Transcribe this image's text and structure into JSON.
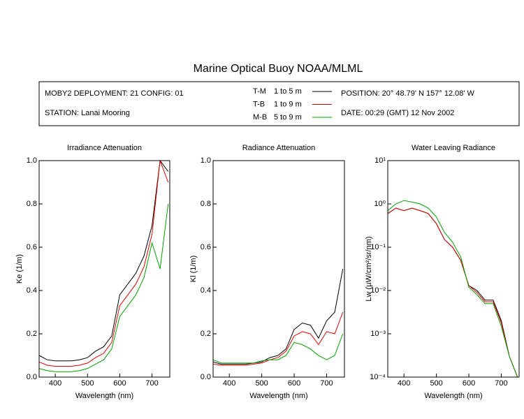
{
  "header": {
    "title": "Marine Optical Buoy NOAA/MLML",
    "deployment": "MOBY2 DEPLOYMENT: 21 CONFIG: 01",
    "station": "STATION: Lanai Mooring",
    "position": "POSITION: 20° 48.79' N   157° 12.08' W",
    "date": "DATE: 00:29 (GMT) 12 Nov 2002",
    "legend": [
      {
        "name": "T-M",
        "range": "1 to 5  m",
        "color": "#000000"
      },
      {
        "name": "T-B",
        "range": "1 to 9  m",
        "color": "#e00000"
      },
      {
        "name": "M-B",
        "range": "5 to 9  m",
        "color": "#00a000"
      }
    ]
  },
  "chart_data": [
    {
      "type": "line",
      "title": "Irradiance Attenuation",
      "x_label": "Wavelength (nm)",
      "y_label": "Ke  (1/m)",
      "x": [
        350,
        375,
        400,
        425,
        450,
        475,
        500,
        525,
        550,
        575,
        600,
        625,
        650,
        675,
        700,
        725,
        750
      ],
      "xlim": [
        350,
        755
      ],
      "xticks": [
        400,
        500,
        600,
        700
      ],
      "ylim": [
        0,
        1
      ],
      "yticks": [
        {
          "value": 0,
          "label": "0.0"
        },
        0.2,
        0.4,
        0.6,
        0.8,
        {
          "value": 1,
          "label": "1.0"
        }
      ],
      "series": [
        {
          "name": "T-M",
          "color": "#000000",
          "values": [
            0.1,
            0.08,
            0.075,
            0.075,
            0.075,
            0.08,
            0.09,
            0.12,
            0.14,
            0.19,
            0.38,
            0.43,
            0.48,
            0.56,
            0.7,
            1.0,
            0.95
          ]
        },
        {
          "name": "T-B",
          "color": "#e00000",
          "values": [
            0.07,
            0.055,
            0.05,
            0.05,
            0.05,
            0.055,
            0.065,
            0.09,
            0.11,
            0.16,
            0.33,
            0.38,
            0.43,
            0.51,
            0.66,
            1.0,
            0.9
          ]
        },
        {
          "name": "M-B",
          "color": "#00a000",
          "values": [
            0.04,
            0.03,
            0.025,
            0.025,
            0.025,
            0.03,
            0.04,
            0.06,
            0.08,
            0.13,
            0.28,
            0.33,
            0.38,
            0.46,
            0.62,
            0.5,
            0.8
          ]
        }
      ]
    },
    {
      "type": "line",
      "title": "Radiance Attenuation",
      "x_label": "Wavelength (nm)",
      "y_label": "Kl  (1/m)",
      "x": [
        350,
        375,
        400,
        425,
        450,
        475,
        500,
        525,
        550,
        575,
        600,
        625,
        650,
        675,
        700,
        725,
        750
      ],
      "xlim": [
        350,
        755
      ],
      "xticks": [
        400,
        500,
        600,
        700
      ],
      "ylim": [
        0,
        1
      ],
      "yticks": [
        {
          "value": 0,
          "label": "0.0"
        },
        0.2,
        0.4,
        0.6,
        0.8,
        {
          "value": 1,
          "label": "1.0"
        }
      ],
      "series": [
        {
          "name": "T-M",
          "color": "#000000",
          "values": [
            0.07,
            0.06,
            0.06,
            0.06,
            0.06,
            0.065,
            0.07,
            0.09,
            0.1,
            0.13,
            0.22,
            0.25,
            0.24,
            0.18,
            0.26,
            0.3,
            0.5
          ]
        },
        {
          "name": "T-B",
          "color": "#e00000",
          "values": [
            0.06,
            0.055,
            0.055,
            0.055,
            0.055,
            0.06,
            0.065,
            0.08,
            0.09,
            0.12,
            0.19,
            0.21,
            0.2,
            0.15,
            0.21,
            0.2,
            0.3
          ]
        },
        {
          "name": "M-B",
          "color": "#00a000",
          "values": [
            0.08,
            0.065,
            0.065,
            0.065,
            0.065,
            0.065,
            0.075,
            0.08,
            0.08,
            0.1,
            0.16,
            0.15,
            0.13,
            0.1,
            0.08,
            0.1,
            0.2
          ]
        }
      ]
    },
    {
      "type": "line",
      "title": "Water Leaving Radiance",
      "x_label": "Wavelength (nm)",
      "y_label": "Lw  (µW/cm²/sr/nm)",
      "log_y": true,
      "x": [
        350,
        375,
        400,
        425,
        450,
        475,
        500,
        525,
        550,
        575,
        600,
        625,
        650,
        675,
        700,
        725,
        750
      ],
      "xlim": [
        350,
        755
      ],
      "xticks": [
        400,
        500,
        600,
        700
      ],
      "ylim": [
        0.0001,
        10
      ],
      "yticks": [
        {
          "value": 0.0001,
          "label": "10⁻⁴"
        },
        {
          "value": 0.001,
          "label": "10⁻³"
        },
        {
          "value": 0.01,
          "label": "10⁻²"
        },
        {
          "value": 0.1,
          "label": "10⁻¹"
        },
        {
          "value": 1,
          "label": "10⁰"
        },
        {
          "value": 10,
          "label": "10¹"
        }
      ],
      "series": [
        {
          "name": "T-M",
          "color": "#000000",
          "values": [
            0.6,
            0.8,
            0.7,
            0.8,
            0.7,
            0.6,
            0.35,
            0.15,
            0.1,
            0.05,
            0.013,
            0.01,
            0.006,
            0.006,
            0.002,
            0.0003,
            0.0001
          ]
        },
        {
          "name": "T-B",
          "color": "#e00000",
          "values": [
            0.6,
            0.8,
            0.7,
            0.8,
            0.7,
            0.6,
            0.35,
            0.15,
            0.1,
            0.05,
            0.013,
            0.009,
            0.0055,
            0.0055,
            0.0018,
            0.0003,
            0.0001
          ]
        },
        {
          "name": "M-B",
          "color": "#00a000",
          "values": [
            0.7,
            1.0,
            1.2,
            1.1,
            1.0,
            0.8,
            0.5,
            0.22,
            0.13,
            0.06,
            0.012,
            0.008,
            0.005,
            0.005,
            0.0015,
            0.0003,
            0.0001
          ]
        }
      ]
    }
  ]
}
